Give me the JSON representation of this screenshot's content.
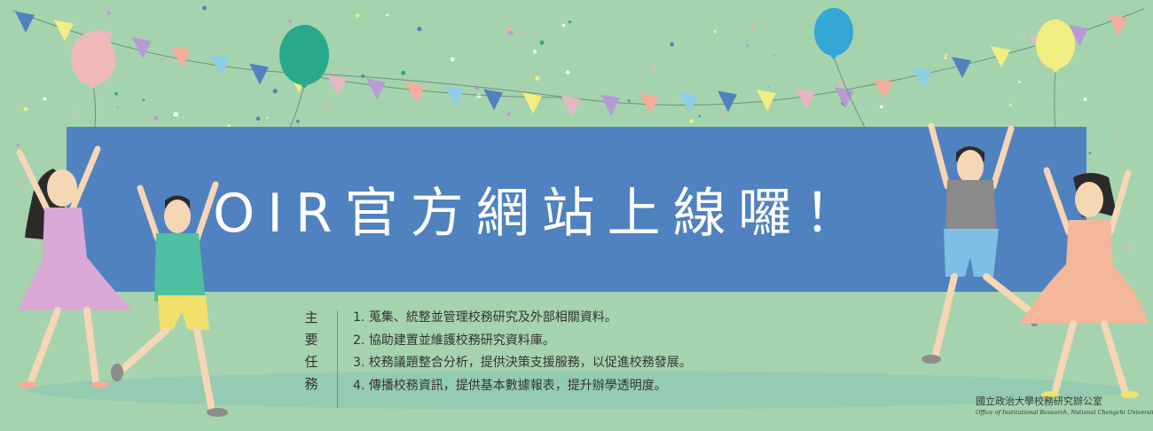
{
  "banner": {
    "headline": "OIR官方網站上線囉！",
    "tasks_label": [
      "主",
      "要",
      "任",
      "務"
    ],
    "tasks": [
      "1. 蒐集、統整並管理校務研究及外部相關資料。",
      "2. 協助建置並維護校務研究資料庫。",
      "3. 校務議題整合分析，提供決策支援服務，以促進校務發展。",
      "4. 傳播校務資訊，提供基本數據報表，提升辦學透明度。"
    ],
    "signature_zh": "國立政治大學校務研究辦公室",
    "signature_en": "Office of Institutional Research, National Chengchi University",
    "colors": {
      "background": "#a5d3ae",
      "title_box": "#4f82bf",
      "pennants": [
        "#4f82bf",
        "#f1ee82",
        "#e8b6c6",
        "#b79ad6",
        "#f4ad9a",
        "#8fcfe3"
      ],
      "balloons": [
        "#f0b8b9",
        "#2aa98a",
        "#34a7d6",
        "#f1ee82"
      ]
    }
  }
}
